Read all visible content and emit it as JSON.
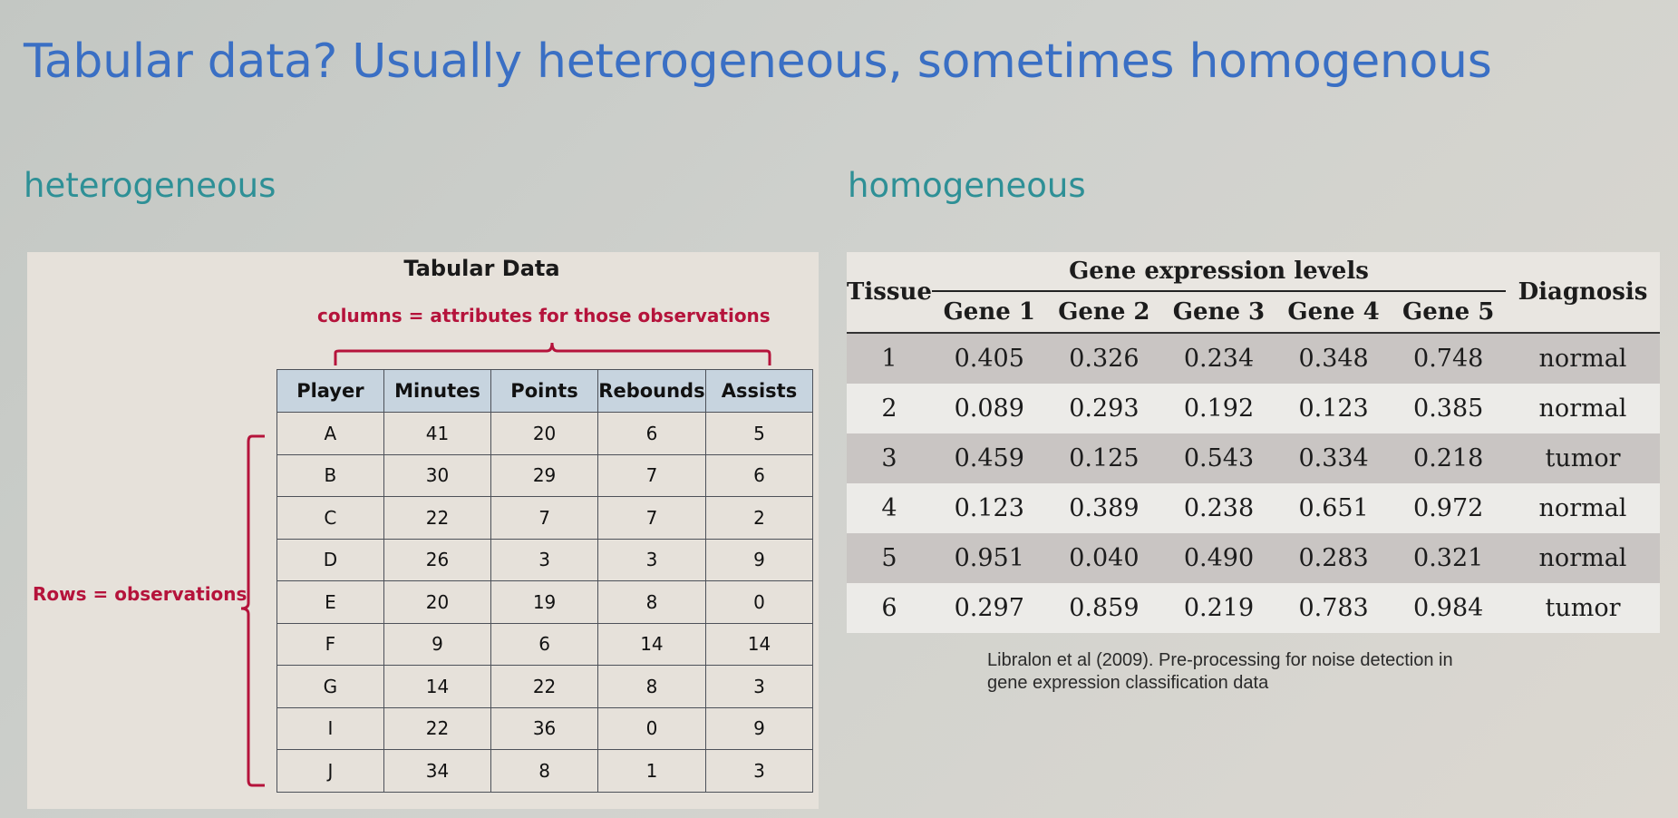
{
  "title": "Tabular data? Usually heterogeneous, sometimes homogenous",
  "heterogeneous": {
    "label": "heterogeneous",
    "panel_title": "Tabular Data",
    "columns_note": "columns = attributes for those observations",
    "rows_note": "Rows = observations",
    "headers": [
      "Player",
      "Minutes",
      "Points",
      "Rebounds",
      "Assists"
    ],
    "rows": [
      [
        "A",
        "41",
        "20",
        "6",
        "5"
      ],
      [
        "B",
        "30",
        "29",
        "7",
        "6"
      ],
      [
        "C",
        "22",
        "7",
        "7",
        "2"
      ],
      [
        "D",
        "26",
        "3",
        "3",
        "9"
      ],
      [
        "E",
        "20",
        "19",
        "8",
        "0"
      ],
      [
        "F",
        "9",
        "6",
        "14",
        "14"
      ],
      [
        "G",
        "14",
        "22",
        "8",
        "3"
      ],
      [
        "I",
        "22",
        "36",
        "0",
        "9"
      ],
      [
        "J",
        "34",
        "8",
        "1",
        "3"
      ]
    ],
    "accent_color": "#b5133b",
    "header_fill": "#c7d4df"
  },
  "homogeneous": {
    "label": "homogeneous",
    "tissue_header": "Tissue",
    "group_header": "Gene expression levels",
    "diagnosis_header": "Diagnosis",
    "gene_headers": [
      "Gene 1",
      "Gene 2",
      "Gene 3",
      "Gene 4",
      "Gene 5"
    ],
    "rows": [
      [
        "1",
        "0.405",
        "0.326",
        "0.234",
        "0.348",
        "0.748",
        "normal"
      ],
      [
        "2",
        "0.089",
        "0.293",
        "0.192",
        "0.123",
        "0.385",
        "normal"
      ],
      [
        "3",
        "0.459",
        "0.125",
        "0.543",
        "0.334",
        "0.218",
        "tumor"
      ],
      [
        "4",
        "0.123",
        "0.389",
        "0.238",
        "0.651",
        "0.972",
        "normal"
      ],
      [
        "5",
        "0.951",
        "0.040",
        "0.490",
        "0.283",
        "0.321",
        "normal"
      ],
      [
        "6",
        "0.297",
        "0.859",
        "0.219",
        "0.783",
        "0.984",
        "tumor"
      ]
    ],
    "citation": "Libralon et al (2009). Pre-processing for noise detection in gene expression classification data"
  },
  "colors": {
    "title": "#3a6fc4",
    "section_label": "#2e9096",
    "stripe_dark": "#c9c5c3",
    "stripe_light": "#ecebe8"
  }
}
